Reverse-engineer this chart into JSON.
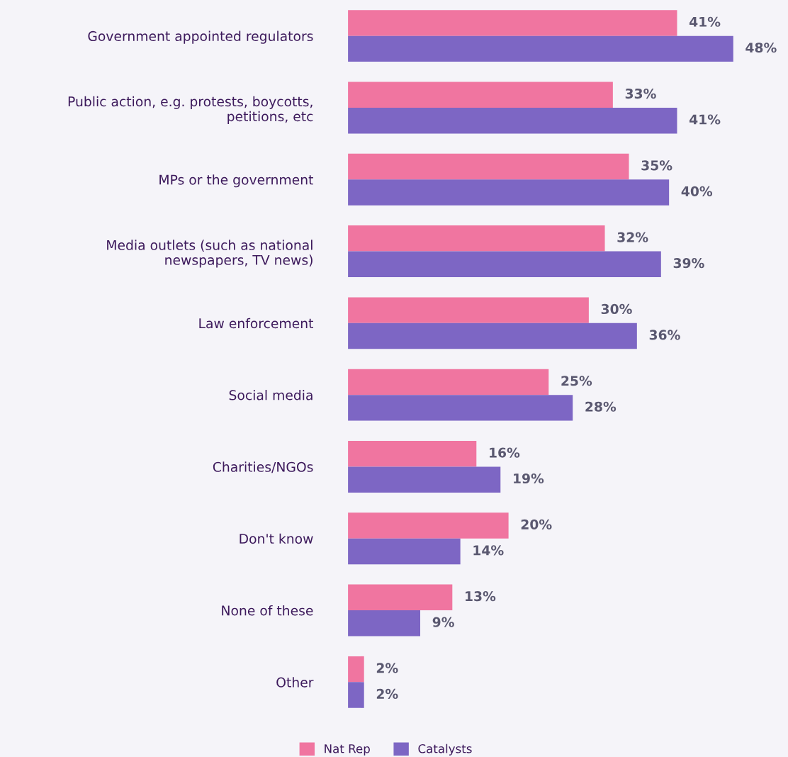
{
  "chart_data": {
    "type": "bar",
    "orientation": "horizontal",
    "categories": [
      "Government appointed regulators",
      "Public action, e.g. protests, boycotts,\npetitions, etc",
      "MPs or the government",
      "Media outlets (such as national\nnewspapers, TV news)",
      "Law enforcement",
      "Social media",
      "Charities/NGOs",
      "Don't know",
      "None of these",
      "Other"
    ],
    "series": [
      {
        "name": "Nat Rep",
        "color": "#f075a0",
        "values": [
          41,
          33,
          35,
          32,
          30,
          25,
          16,
          20,
          13,
          2
        ],
        "value_labels": [
          "41%",
          "33%",
          "35%",
          "32%",
          "30%",
          "25%",
          "16%",
          "20%",
          "13%",
          "2%"
        ]
      },
      {
        "name": "Catalysts",
        "color": "#7d66c4",
        "values": [
          48,
          41,
          40,
          39,
          36,
          28,
          19,
          14,
          9,
          2
        ],
        "value_labels": [
          "48%",
          "41%",
          "40%",
          "39%",
          "36%",
          "28%",
          "19%",
          "14%",
          "9%",
          "2%"
        ]
      }
    ],
    "tick_labels": "y",
    "legend": "bottom"
  }
}
